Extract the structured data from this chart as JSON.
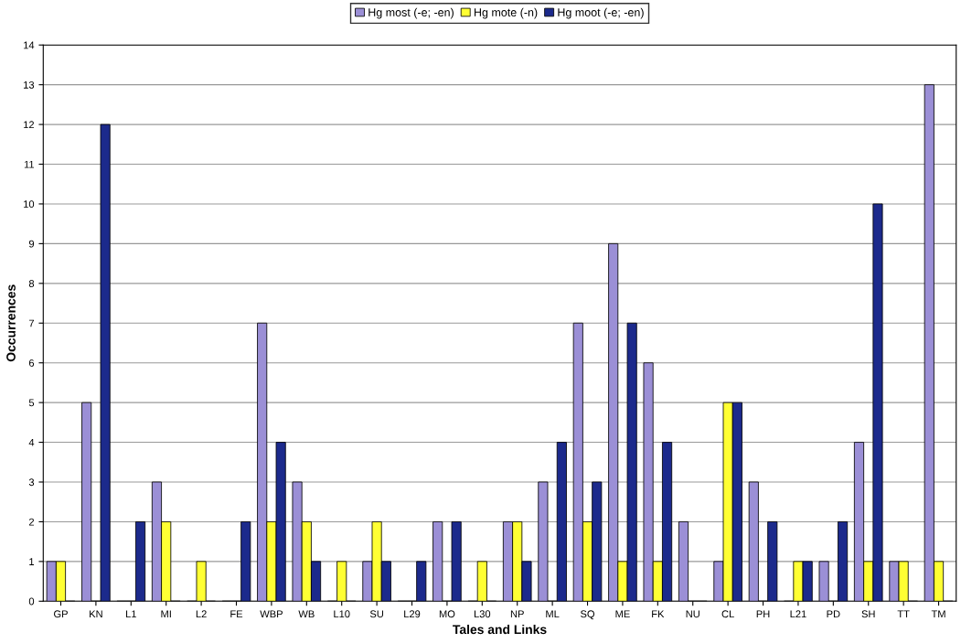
{
  "chart_data": {
    "type": "bar",
    "xlabel": "Tales and Links",
    "ylabel": "Occurrences",
    "categories": [
      "GP",
      "KN",
      "L1",
      "MI",
      "L2",
      "FE",
      "WBP",
      "WB",
      "L10",
      "SU",
      "L29",
      "MO",
      "L30",
      "NP",
      "ML",
      "SQ",
      "ME",
      "FK",
      "NU",
      "CL",
      "PH",
      "L21",
      "PD",
      "SH",
      "TT",
      "TM"
    ],
    "series": [
      {
        "name": "Hg most (-e; -en)",
        "color": "#9b8fd6",
        "values": [
          1,
          5,
          0,
          3,
          0,
          0,
          7,
          3,
          0,
          1,
          0,
          2,
          0,
          2,
          3,
          7,
          9,
          6,
          2,
          1,
          3,
          0,
          1,
          4,
          1,
          13
        ]
      },
      {
        "name": "Hg mote (-n)",
        "color": "#ffff33",
        "values": [
          1,
          0,
          0,
          2,
          1,
          0,
          2,
          2,
          1,
          2,
          0,
          0,
          1,
          2,
          0,
          2,
          1,
          1,
          0,
          5,
          0,
          1,
          0,
          1,
          1,
          1
        ]
      },
      {
        "name": "Hg moot (-e; -en)",
        "color": "#1c2a8c",
        "values": [
          0,
          12,
          2,
          0,
          0,
          2,
          4,
          1,
          0,
          1,
          1,
          2,
          0,
          1,
          4,
          3,
          7,
          4,
          0,
          5,
          2,
          1,
          2,
          10,
          0,
          0
        ]
      }
    ],
    "ylim": [
      0,
      14
    ],
    "yticks": [
      0,
      1,
      2,
      3,
      4,
      5,
      6,
      7,
      8,
      9,
      10,
      11,
      12,
      13,
      14
    ],
    "grid": "y",
    "legend": "top"
  }
}
